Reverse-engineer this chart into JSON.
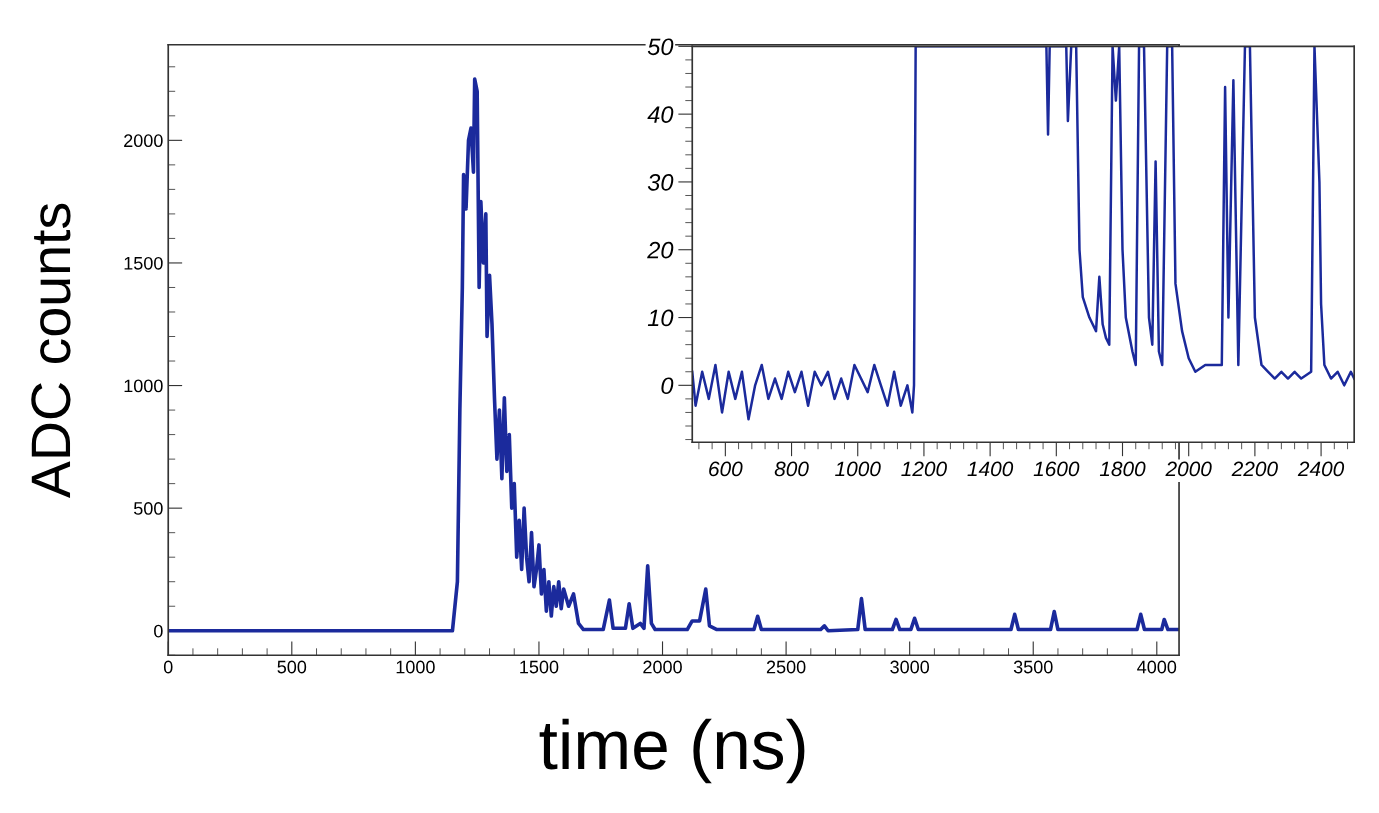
{
  "chart_data": [
    {
      "type": "line",
      "xlabel": "time (ns)",
      "ylabel": "ADC counts",
      "xlim": [
        0,
        4090
      ],
      "ylim": [
        -100,
        2390
      ],
      "xticks": [
        0,
        500,
        1000,
        1500,
        2000,
        2500,
        3000,
        3500,
        4000
      ],
      "yticks": [
        0,
        500,
        1000,
        1500,
        2000
      ],
      "grid": false,
      "legend": false,
      "series": [
        {
          "color": "#1b2a9c",
          "x": [
            0,
            1150,
            1170,
            1180,
            1190,
            1195,
            1205,
            1215,
            1225,
            1235,
            1240,
            1250,
            1258,
            1265,
            1275,
            1285,
            1290,
            1300,
            1310,
            1320,
            1330,
            1340,
            1350,
            1360,
            1370,
            1380,
            1390,
            1400,
            1410,
            1420,
            1430,
            1440,
            1450,
            1460,
            1470,
            1480,
            1490,
            1500,
            1510,
            1520,
            1530,
            1540,
            1550,
            1560,
            1570,
            1580,
            1590,
            1600,
            1620,
            1640,
            1660,
            1680,
            1760,
            1785,
            1800,
            1850,
            1865,
            1880,
            1910,
            1925,
            1940,
            1955,
            1970,
            2100,
            2120,
            2150,
            2175,
            2190,
            2220,
            2370,
            2385,
            2400,
            2640,
            2655,
            2670,
            2790,
            2805,
            2820,
            2930,
            2945,
            2960,
            3005,
            3020,
            3035,
            3410,
            3425,
            3440,
            3570,
            3585,
            3600,
            3920,
            3935,
            3950,
            4020,
            4030,
            4045,
            4085
          ],
          "values": [
            0,
            0,
            200,
            900,
            1400,
            1860,
            1720,
            2000,
            2050,
            1870,
            2250,
            2200,
            1400,
            1750,
            1500,
            1700,
            1200,
            1450,
            1250,
            950,
            700,
            900,
            620,
            950,
            650,
            800,
            500,
            600,
            300,
            450,
            250,
            500,
            300,
            200,
            400,
            180,
            250,
            350,
            150,
            250,
            80,
            200,
            60,
            180,
            100,
            200,
            90,
            170,
            100,
            150,
            30,
            5,
            5,
            125,
            10,
            10,
            110,
            10,
            30,
            10,
            265,
            30,
            5,
            5,
            40,
            40,
            170,
            20,
            5,
            5,
            59,
            5,
            5,
            20,
            0,
            5,
            131,
            5,
            5,
            46,
            5,
            5,
            51,
            5,
            5,
            67,
            5,
            5,
            78,
            5,
            5,
            67,
            5,
            5,
            46,
            5,
            5
          ]
        }
      ]
    },
    {
      "type": "line",
      "xlim": [
        500,
        2500
      ],
      "ylim": [
        -8.4,
        50
      ],
      "xticks": [
        600,
        800,
        1000,
        1200,
        1400,
        1600,
        1800,
        2000,
        2200,
        2400
      ],
      "yticks": [
        0,
        10,
        20,
        30,
        40,
        50
      ],
      "grid": false,
      "legend": false,
      "series": [
        {
          "color": "#1b2a9c",
          "x": [
            500,
            510,
            530,
            550,
            570,
            590,
            610,
            630,
            650,
            670,
            690,
            710,
            730,
            750,
            770,
            790,
            810,
            830,
            850,
            870,
            890,
            910,
            930,
            950,
            970,
            990,
            1010,
            1030,
            1050,
            1070,
            1090,
            1110,
            1130,
            1150,
            1165,
            1170,
            1175,
            1570,
            1575,
            1580,
            1630,
            1635,
            1645,
            1660,
            1670,
            1680,
            1700,
            1720,
            1730,
            1740,
            1750,
            1760,
            1770,
            1780,
            1790,
            1800,
            1810,
            1830,
            1840,
            1850,
            1865,
            1880,
            1890,
            1900,
            1910,
            1920,
            1935,
            1950,
            1960,
            1980,
            2000,
            2020,
            2050,
            2080,
            2100,
            2110,
            2120,
            2135,
            2150,
            2170,
            2185,
            2200,
            2220,
            2240,
            2260,
            2280,
            2300,
            2320,
            2340,
            2370,
            2380,
            2395,
            2400,
            2410,
            2430,
            2450,
            2470,
            2490,
            2500
          ],
          "values": [
            2,
            -3,
            2,
            -2,
            3,
            -4,
            2,
            -2,
            2,
            -5,
            0,
            3,
            -2,
            1,
            -2,
            2,
            -1,
            2,
            -3,
            2,
            0,
            2,
            -2,
            1,
            -2,
            3,
            1,
            -1,
            3,
            0,
            -3,
            2,
            -3,
            0,
            -4,
            0,
            50,
            50,
            37,
            50,
            50,
            39,
            50,
            50,
            20,
            13,
            10,
            8,
            16,
            9,
            7,
            6,
            50,
            42,
            50,
            20,
            10,
            5,
            3,
            50,
            50,
            10,
            6,
            33,
            5,
            3,
            50,
            50,
            15,
            8,
            4,
            2,
            3,
            3,
            3,
            44,
            10,
            45,
            3,
            50,
            50,
            10,
            3,
            2,
            1,
            2,
            1,
            2,
            1,
            2,
            50,
            30,
            12,
            3,
            1,
            2,
            0,
            2,
            1
          ]
        }
      ]
    }
  ]
}
